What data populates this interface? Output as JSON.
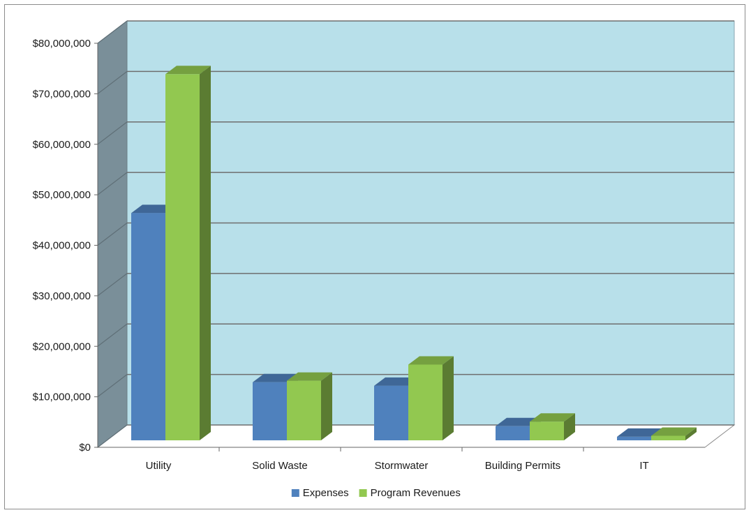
{
  "chart_data": {
    "type": "bar",
    "title": "",
    "xlabel": "",
    "ylabel": "",
    "categories": [
      "Utility",
      "Solid Waste",
      "Stormwater",
      "Building Permits",
      "IT"
    ],
    "series": [
      {
        "name": "Expenses",
        "values": [
          45000000,
          11500000,
          10800000,
          2800000,
          700000
        ]
      },
      {
        "name": "Program Revenues",
        "values": [
          72500000,
          11800000,
          15000000,
          3700000,
          900000
        ]
      }
    ],
    "ylim": [
      0,
      80000000
    ],
    "yticks": [
      0,
      10000000,
      20000000,
      30000000,
      40000000,
      50000000,
      60000000,
      70000000,
      80000000
    ],
    "ytick_labels": [
      "$0",
      "$10,000,000",
      "$20,000,000",
      "$30,000,000",
      "$40,000,000",
      "$50,000,000",
      "$60,000,000",
      "$70,000,000",
      "$80,000,000"
    ],
    "grid": true,
    "legend_position": "bottom",
    "style": "3d-clustered-column",
    "colors": {
      "Expenses": "#4f81bd",
      "Program Revenues": "#92c850",
      "back_wall": "#b8e0ea",
      "side_wall": "#7a8f99"
    }
  }
}
